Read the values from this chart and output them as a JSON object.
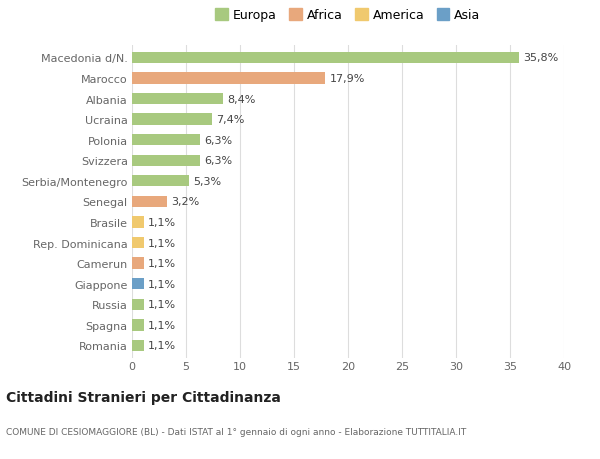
{
  "categories": [
    "Macedonia d/N.",
    "Marocco",
    "Albania",
    "Ucraina",
    "Polonia",
    "Svizzera",
    "Serbia/Montenegro",
    "Senegal",
    "Brasile",
    "Rep. Dominicana",
    "Camerun",
    "Giappone",
    "Russia",
    "Spagna",
    "Romania"
  ],
  "values": [
    35.8,
    17.9,
    8.4,
    7.4,
    6.3,
    6.3,
    5.3,
    3.2,
    1.1,
    1.1,
    1.1,
    1.1,
    1.1,
    1.1,
    1.1
  ],
  "labels": [
    "35,8%",
    "17,9%",
    "8,4%",
    "7,4%",
    "6,3%",
    "6,3%",
    "5,3%",
    "3,2%",
    "1,1%",
    "1,1%",
    "1,1%",
    "1,1%",
    "1,1%",
    "1,1%",
    "1,1%"
  ],
  "continents": [
    "Europa",
    "Africa",
    "Europa",
    "Europa",
    "Europa",
    "Europa",
    "Europa",
    "Africa",
    "America",
    "America",
    "Africa",
    "Asia",
    "Europa",
    "Europa",
    "Europa"
  ],
  "colors": {
    "Europa": "#a8c97f",
    "Africa": "#e8a87c",
    "America": "#f0c96e",
    "Asia": "#6b9fc7"
  },
  "legend_order": [
    "Europa",
    "Africa",
    "America",
    "Asia"
  ],
  "title": "Cittadini Stranieri per Cittadinanza",
  "subtitle": "COMUNE DI CESIOMAGGIORE (BL) - Dati ISTAT al 1° gennaio di ogni anno - Elaborazione TUTTITALIA.IT",
  "xlim": [
    0,
    40
  ],
  "xticks": [
    0,
    5,
    10,
    15,
    20,
    25,
    30,
    35,
    40
  ],
  "bg_color": "#ffffff",
  "grid_color": "#dddddd"
}
